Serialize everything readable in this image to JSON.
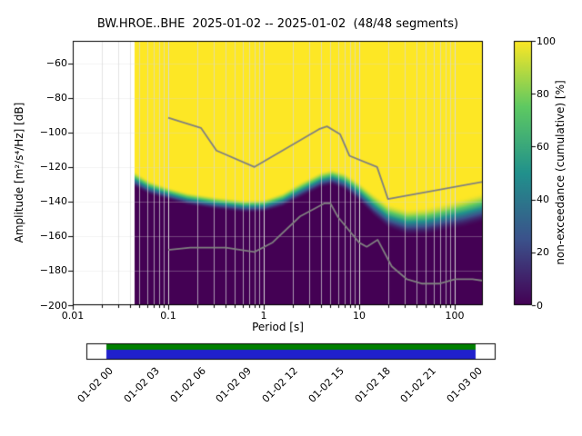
{
  "window": {
    "title": "BW.HROE..BHE  2025-01-02 -- 2025-01-02  (48/48 segments)"
  },
  "axes": {
    "xlabel": "Period [s]",
    "ylabel": "Amplitude [m²/s⁴/Hz] [dB]",
    "x_tick_labels": [
      "0.01",
      "0.1",
      "1",
      "10",
      "100"
    ],
    "x_tick_values": [
      0.01,
      0.1,
      1,
      10,
      100
    ],
    "y_tick_labels": [
      "−60",
      "−80",
      "−100",
      "−120",
      "−140",
      "−160",
      "−180",
      "−200"
    ],
    "y_tick_values": [
      -60,
      -80,
      -100,
      -120,
      -140,
      -160,
      -180,
      -200
    ]
  },
  "colorbar": {
    "label": "non-exceedance (cumulative) [%]",
    "tick_labels": [
      "0",
      "20",
      "40",
      "60",
      "80",
      "100"
    ],
    "tick_values": [
      0,
      20,
      40,
      60,
      80,
      100
    ]
  },
  "chart_data": {
    "type": "heatmap",
    "title": "BW.HROE..BHE  2025-01-02 -- 2025-01-02  (48/48 segments)",
    "xlabel": "Period [s]",
    "ylabel": "Amplitude [m²/s⁴/Hz] [dB]",
    "x_scale": "log",
    "x_range_s": [
      0.01,
      197
    ],
    "y_range_db": [
      -200,
      -47
    ],
    "data_start_period_s": 0.044,
    "colorbar_label": "non-exceedance (cumulative) [%]",
    "colorbar_range": [
      0,
      100
    ],
    "colormap": "viridis",
    "colormap_stops": [
      [
        0,
        "#440154"
      ],
      [
        0.25,
        "#3b528b"
      ],
      [
        0.5,
        "#21918c"
      ],
      [
        0.75,
        "#5ec962"
      ],
      [
        1,
        "#fde725"
      ]
    ],
    "grid_color": "#d8d8d8",
    "cumulative_distribution": {
      "log10_periods": [
        -1.36,
        -1.2,
        -1.0,
        -0.8,
        -0.5,
        -0.2,
        0.0,
        0.2,
        0.4,
        0.6,
        0.72,
        0.85,
        1.0,
        1.15,
        1.3,
        1.5,
        1.7,
        1.9,
        2.1,
        2.3
      ],
      "center_db": [
        -127,
        -132,
        -135.5,
        -138.5,
        -141,
        -142.8,
        -142.5,
        -139,
        -133,
        -127.5,
        -126,
        -128.5,
        -134.5,
        -142,
        -148.5,
        -152,
        -151.5,
        -149,
        -146.5,
        -143.5
      ],
      "halfwidth_db": [
        5,
        4.5,
        4,
        4,
        4,
        4,
        4,
        4.5,
        5,
        5,
        5,
        5.5,
        6,
        7,
        7.5,
        8,
        8.5,
        8.5,
        9,
        9
      ]
    },
    "noise_models": {
      "color": "#808080",
      "high_noise_model": [
        [
          0.1,
          -91.5
        ],
        [
          0.22,
          -97.4
        ],
        [
          0.32,
          -110.5
        ],
        [
          0.8,
          -120.0
        ],
        [
          3.8,
          -98.1
        ],
        [
          4.6,
          -96.5
        ],
        [
          6.3,
          -101.0
        ],
        [
          7.9,
          -113.5
        ],
        [
          15.4,
          -120.0
        ],
        [
          20.0,
          -138.5
        ],
        [
          354.8,
          -126.0
        ]
      ],
      "low_noise_model": [
        [
          0.1,
          -168.0
        ],
        [
          0.17,
          -166.7
        ],
        [
          0.4,
          -166.7
        ],
        [
          0.8,
          -169.2
        ],
        [
          1.24,
          -163.7
        ],
        [
          2.4,
          -148.6
        ],
        [
          4.3,
          -141.1
        ],
        [
          5.0,
          -141.1
        ],
        [
          6.0,
          -149.0
        ],
        [
          10.0,
          -163.8
        ],
        [
          12.0,
          -166.2
        ],
        [
          15.6,
          -162.1
        ],
        [
          21.9,
          -177.5
        ],
        [
          31.6,
          -185.0
        ],
        [
          45.0,
          -187.5
        ],
        [
          70.0,
          -187.5
        ],
        [
          101.0,
          -185.0
        ],
        [
          154.0,
          -185.0
        ],
        [
          328.5,
          -187.5
        ]
      ]
    }
  },
  "timeline": {
    "labels": [
      "01-02 00",
      "01-02 03",
      "01-02 06",
      "01-02 09",
      "01-02 12",
      "01-02 15",
      "01-02 18",
      "01-02 21",
      "01-03 00"
    ],
    "coverage_color": "#008000",
    "segments_color": "#2020cc"
  }
}
